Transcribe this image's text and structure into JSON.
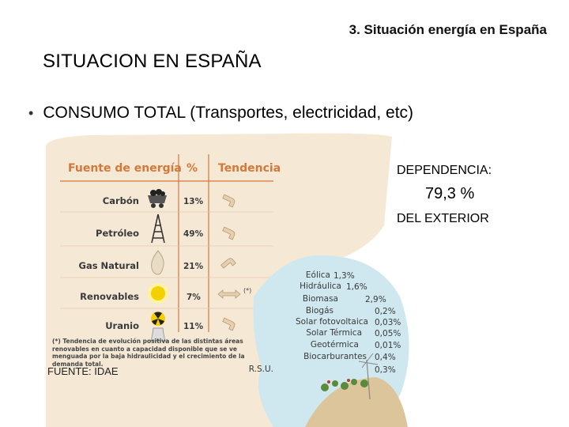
{
  "header": {
    "section_title": "3. Situación energía en España"
  },
  "main": {
    "title": "SITUACION EN ESPAÑA",
    "bullet": "CONSUMO TOTAL (Transportes, electricidad, etc)"
  },
  "table": {
    "headers": [
      "Fuente de energía",
      "%",
      "Tendencia"
    ],
    "rows": [
      {
        "name": "Carbón",
        "pct": "13%",
        "icon": "coal-cart-icon",
        "trend": "down"
      },
      {
        "name": "Petróleo",
        "pct": "49%",
        "icon": "oil-derrick-icon",
        "trend": "down"
      },
      {
        "name": "Gas Natural",
        "pct": "21%",
        "icon": "gas-flame-icon",
        "trend": "up"
      },
      {
        "name": "Renovables",
        "pct": "7%",
        "icon": "sun-icon",
        "trend": "both"
      },
      {
        "name": "Uranio",
        "pct": "11%",
        "icon": "radiation-icon",
        "trend": "down"
      }
    ],
    "asterisk": "(*)",
    "footnote": "(*) Tendencia de evolución positiva de las distintas áreas renovables en cuanto a capacidad disponible que se ve menguada por la baja hidraulicidad y el crecimiento de la demanda total."
  },
  "renovables": [
    {
      "name": "Eólica",
      "value": "1,3%"
    },
    {
      "name": "Hidráulica",
      "value": "1,6%"
    },
    {
      "name": "Biomasa",
      "value": "2,9%"
    },
    {
      "name": "Biogás",
      "value": "0,2%"
    },
    {
      "name": "Solar fotovoltaica",
      "value": "0,03%"
    },
    {
      "name": "Solar Térmica",
      "value": "0,05%"
    },
    {
      "name": "Geotérmica",
      "value": "0,01%"
    },
    {
      "name": "Biocarburantes",
      "value": "0,4%"
    },
    {
      "name": "R.S.U.",
      "value": "0,3%"
    }
  ],
  "source": "FUENTE: IDAE",
  "dependency": {
    "label": "DEPENDENCIA:",
    "value": "79,3 %",
    "suffix": "DEL EXTERIOR"
  },
  "colors": {
    "header_orange": "#d4783a",
    "panel_beige": "#f5e9d6",
    "bubble_blue": "#cfe8f0",
    "text_dark": "#3a3a3a"
  }
}
